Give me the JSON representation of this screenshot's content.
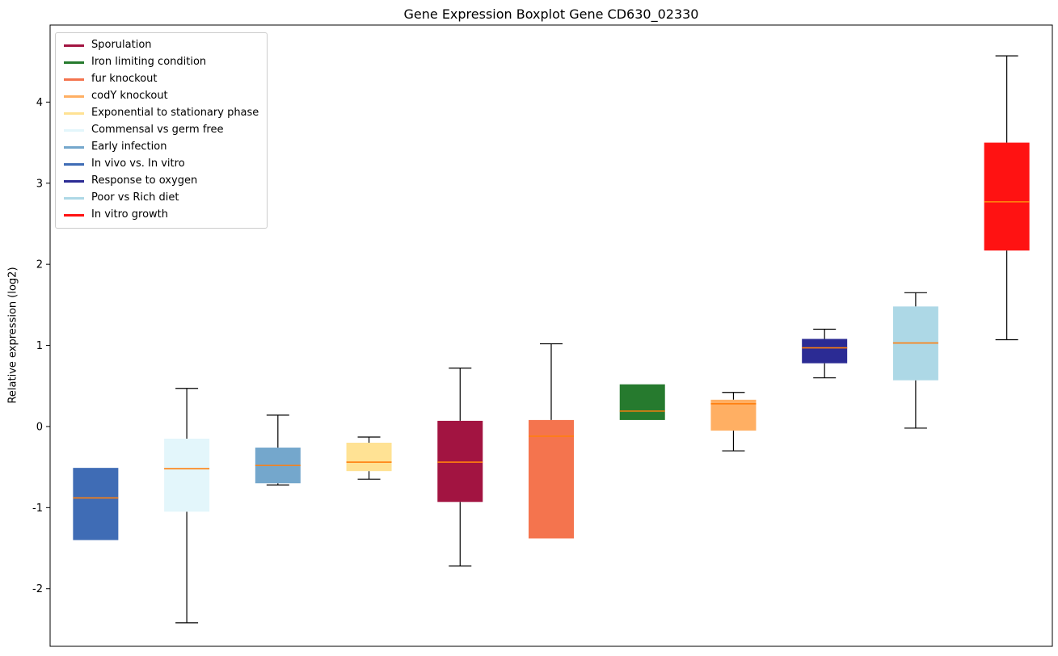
{
  "chart_data": {
    "type": "boxplot",
    "title": "Gene Expression Boxplot Gene CD630_02330",
    "ylabel": "Relative expression (log2)",
    "xlabel": "",
    "ylim": [
      -2.71,
      4.95
    ],
    "yticks": [
      -2,
      -1,
      0,
      1,
      2,
      3,
      4
    ],
    "grid": false,
    "legend_position": "upper left",
    "median_color": "#ff7f0e",
    "box_border": "none",
    "legend": [
      {
        "label": "Sporulation",
        "color": "#a21441"
      },
      {
        "label": "Iron limiting condition",
        "color": "#267a2e"
      },
      {
        "label": "fur knockout",
        "color": "#f4744e"
      },
      {
        "label": "codY knockout",
        "color": "#ffaf63"
      },
      {
        "label": "Exponential to stationary phase",
        "color": "#ffe294"
      },
      {
        "label": "Commensal vs germ free",
        "color": "#e3f6fb"
      },
      {
        "label": "Early infection",
        "color": "#74a7cc"
      },
      {
        "label": "In vivo vs. In vitro",
        "color": "#3f6cb5"
      },
      {
        "label": "Response to oxygen",
        "color": "#2b2b94"
      },
      {
        "label": "Poor vs Rich diet",
        "color": "#add8e6"
      },
      {
        "label": "In vitro growth",
        "color": "#ff1212"
      }
    ],
    "series": [
      {
        "name": "In vivo vs. In vitro",
        "color": "#3f6cb5",
        "whisker_low": -1.4,
        "q1": -1.4,
        "median": -0.88,
        "q3": -0.51,
        "whisker_high": -0.51
      },
      {
        "name": "Commensal vs germ free",
        "color": "#e3f6fb",
        "whisker_low": -2.42,
        "q1": -1.05,
        "median": -0.52,
        "q3": -0.15,
        "whisker_high": 0.47
      },
      {
        "name": "Early infection",
        "color": "#74a7cc",
        "whisker_low": -0.72,
        "q1": -0.7,
        "median": -0.48,
        "q3": -0.26,
        "whisker_high": 0.14
      },
      {
        "name": "Exponential to stationary phase",
        "color": "#ffe294",
        "whisker_low": -0.65,
        "q1": -0.55,
        "median": -0.44,
        "q3": -0.2,
        "whisker_high": -0.13
      },
      {
        "name": "Sporulation",
        "color": "#a21441",
        "whisker_low": -1.72,
        "q1": -0.93,
        "median": -0.44,
        "q3": 0.07,
        "whisker_high": 0.72
      },
      {
        "name": "fur knockout",
        "color": "#f4744e",
        "whisker_low": -1.38,
        "q1": -1.38,
        "median": -0.12,
        "q3": 0.08,
        "whisker_high": 1.02
      },
      {
        "name": "Iron limiting condition",
        "color": "#267a2e",
        "whisker_low": 0.08,
        "q1": 0.08,
        "median": 0.19,
        "q3": 0.52,
        "whisker_high": 0.52
      },
      {
        "name": "codY knockout",
        "color": "#ffaf63",
        "whisker_low": -0.3,
        "q1": -0.05,
        "median": 0.28,
        "q3": 0.33,
        "whisker_high": 0.42
      },
      {
        "name": "Response to oxygen",
        "color": "#2b2b94",
        "whisker_low": 0.6,
        "q1": 0.78,
        "median": 0.97,
        "q3": 1.08,
        "whisker_high": 1.2
      },
      {
        "name": "Poor vs Rich diet",
        "color": "#add8e6",
        "whisker_low": -0.02,
        "q1": 0.57,
        "median": 1.03,
        "q3": 1.48,
        "whisker_high": 1.65
      },
      {
        "name": "In vitro growth",
        "color": "#ff1212",
        "whisker_low": 1.07,
        "q1": 2.17,
        "median": 2.77,
        "q3": 3.5,
        "whisker_high": 4.57
      }
    ]
  }
}
